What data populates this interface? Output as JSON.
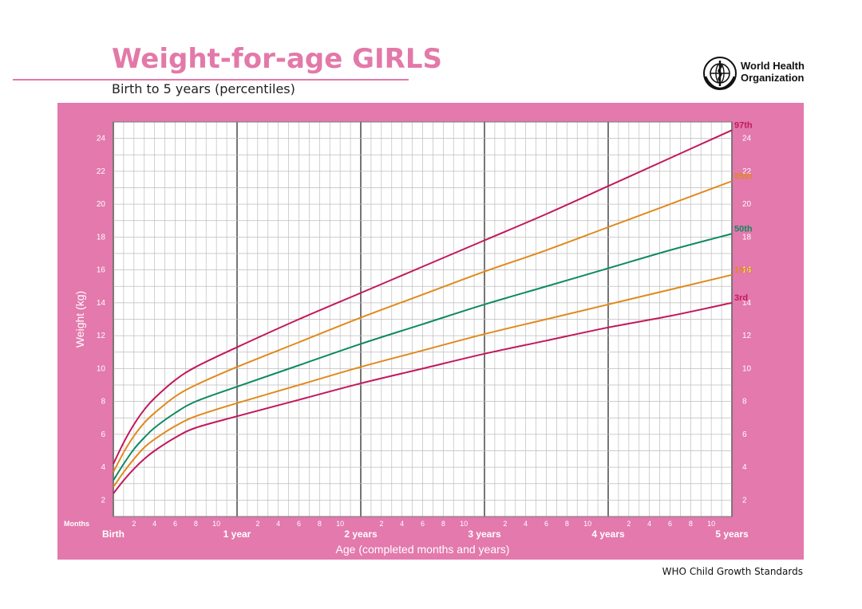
{
  "header": {
    "title": "Weight-for-age GIRLS",
    "subtitle": "Birth to 5 years (percentiles)",
    "organization": [
      "World Health",
      "Organization"
    ],
    "logo_icon": "who-emblem-icon"
  },
  "footer": {
    "source": "WHO Child Growth Standards"
  },
  "colors": {
    "brand_pink": "#e379ad",
    "title_pink": "#e379a9",
    "p97": "#c2185b",
    "p85": "#e08a1e",
    "p50": "#0f8a5f",
    "p15": "#e08a1e",
    "p3": "#c2185b"
  },
  "chart_data": {
    "type": "line",
    "title": "Weight-for-age GIRLS",
    "subtitle": "Birth to 5 years (percentiles)",
    "xlabel": "Age (completed months and years)",
    "ylabel": "Weight (kg)",
    "x_unit_label": "Months",
    "xlim": [
      0,
      60
    ],
    "ylim": [
      1,
      25
    ],
    "y_ticks": [
      2,
      4,
      6,
      8,
      10,
      12,
      14,
      16,
      18,
      20,
      22,
      24
    ],
    "year_labels": [
      "Birth",
      "1 year",
      "2 years",
      "3 years",
      "4 years",
      "5 years"
    ],
    "month_ticks": [
      "2",
      "4",
      "6",
      "8",
      "10"
    ],
    "grid": true,
    "x": [
      0,
      1,
      2,
      3,
      4,
      6,
      8,
      12,
      18,
      24,
      30,
      36,
      42,
      48,
      54,
      60
    ],
    "series": [
      {
        "name": "97th",
        "values": [
          4.2,
          5.5,
          6.6,
          7.5,
          8.2,
          9.3,
          10.1,
          11.3,
          13.0,
          14.6,
          16.2,
          17.8,
          19.4,
          21.1,
          22.8,
          24.5
        ]
      },
      {
        "name": "85th",
        "values": [
          3.7,
          4.9,
          5.9,
          6.7,
          7.3,
          8.3,
          9.0,
          10.1,
          11.6,
          13.1,
          14.5,
          15.9,
          17.2,
          18.6,
          20.0,
          21.4
        ]
      },
      {
        "name": "50th",
        "values": [
          3.2,
          4.2,
          5.1,
          5.8,
          6.4,
          7.3,
          8.0,
          8.9,
          10.2,
          11.5,
          12.7,
          13.9,
          15.0,
          16.1,
          17.2,
          18.2
        ]
      },
      {
        "name": "15th",
        "values": [
          2.8,
          3.7,
          4.5,
          5.2,
          5.7,
          6.5,
          7.1,
          7.9,
          9.0,
          10.1,
          11.1,
          12.1,
          13.0,
          13.9,
          14.8,
          15.7
        ]
      },
      {
        "name": "3rd",
        "values": [
          2.4,
          3.2,
          3.9,
          4.5,
          5.0,
          5.8,
          6.4,
          7.1,
          8.1,
          9.1,
          10.0,
          10.9,
          11.7,
          12.5,
          13.2,
          14.0
        ]
      }
    ]
  }
}
